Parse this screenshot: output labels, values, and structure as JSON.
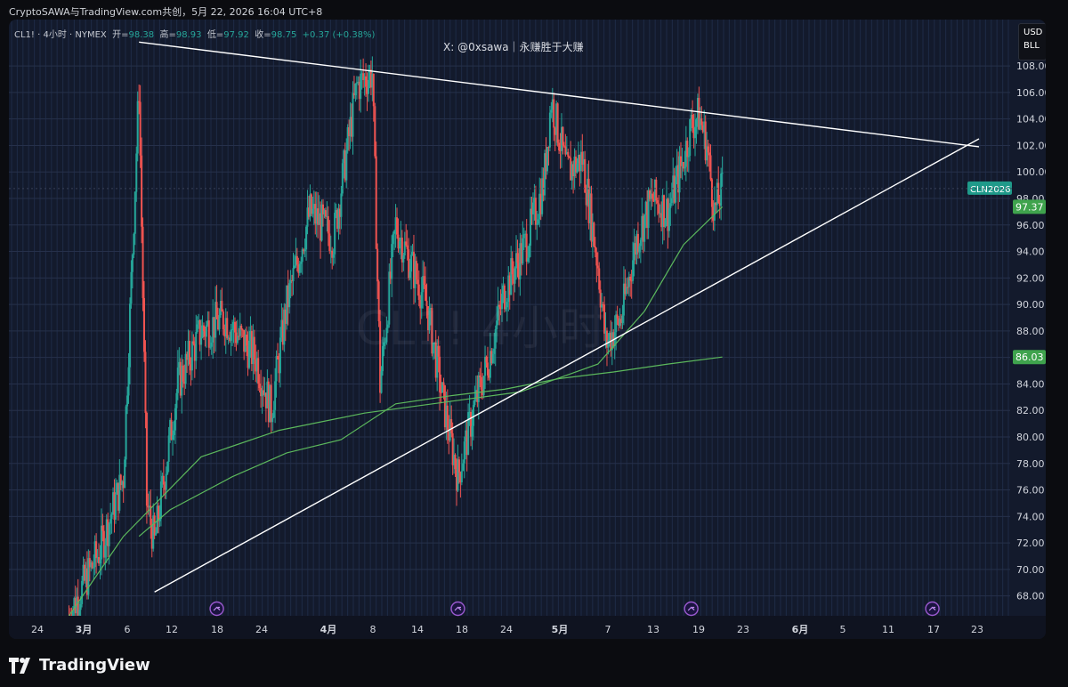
{
  "header": {
    "source": "CryptoSAWA与TradingView.com共创，5月 22, 2026 16:04 UTC+8",
    "symbol": "CL1! · 4小时 · NYMEX",
    "open_label": "开=",
    "open": "98.38",
    "high_label": "高=",
    "high": "98.93",
    "low_label": "低=",
    "low": "97.92",
    "close_label": "收=",
    "close": "98.75",
    "change": "+0.37 (+0.38%)"
  },
  "author_tag": "X: @0xsawa｜永赚胜于大赚",
  "watermark": "CL1! 4小时",
  "unit_box": {
    "line1": "USD",
    "line2": "BLL"
  },
  "footer": {
    "brand": "TradingView"
  },
  "colors": {
    "up": "#26a69a",
    "down": "#ef5350",
    "ma": "#5cb85c",
    "trendline": "#ffffff",
    "contract_label": "#1f9a8a",
    "price_label": "#3fa34d"
  },
  "chart_data": {
    "type": "candlestick",
    "title": "",
    "timeframe": "4小时",
    "xlabel": "",
    "ylabel": "",
    "ylim": [
      66.5,
      111.5
    ],
    "y_ticks": [
      "108.00",
      "106.00",
      "104.00",
      "102.00",
      "100.00",
      "98.00",
      "96.00",
      "94.00",
      "92.00",
      "90.00",
      "88.00",
      "86.00",
      "84.00",
      "82.00",
      "80.00",
      "78.00",
      "76.00",
      "74.00",
      "72.00",
      "70.00",
      "68.00"
    ],
    "x_ticks": [
      "24",
      "3月",
      "6",
      "12",
      "18",
      "24",
      "4月",
      "8",
      "14",
      "18",
      "24",
      "5月",
      "7",
      "13",
      "19",
      "23",
      "6月",
      "5",
      "11",
      "17",
      "23"
    ],
    "price_range_estimate": {
      "start_date": "2026-02-27",
      "end_date": "2026-05-22",
      "start_price": 66.5,
      "last_close": 98.75
    },
    "key_points": [
      {
        "date": "2026-02-27",
        "price": 66.5
      },
      {
        "date": "2026-03-03",
        "price": 71.5
      },
      {
        "date": "2026-03-06",
        "price": 77
      },
      {
        "date": "2026-03-08",
        "price": 106.5
      },
      {
        "date": "2026-03-09",
        "price": 75
      },
      {
        "date": "2026-03-10",
        "price": 72
      },
      {
        "date": "2026-03-13",
        "price": 84
      },
      {
        "date": "2026-03-16",
        "price": 88
      },
      {
        "date": "2026-03-19",
        "price": 89
      },
      {
        "date": "2026-03-23",
        "price": 86
      },
      {
        "date": "2026-03-25",
        "price": 82
      },
      {
        "date": "2026-03-27",
        "price": 90
      },
      {
        "date": "2026-03-30",
        "price": 97
      },
      {
        "date": "2026-04-02",
        "price": 95
      },
      {
        "date": "2026-04-05",
        "price": 106.5
      },
      {
        "date": "2026-04-07",
        "price": 107.5
      },
      {
        "date": "2026-04-08",
        "price": 84
      },
      {
        "date": "2026-04-10",
        "price": 96
      },
      {
        "date": "2026-04-14",
        "price": 90
      },
      {
        "date": "2026-04-16",
        "price": 83
      },
      {
        "date": "2026-04-18",
        "price": 77
      },
      {
        "date": "2026-04-20",
        "price": 82
      },
      {
        "date": "2026-04-22",
        "price": 86
      },
      {
        "date": "2026-04-24",
        "price": 91
      },
      {
        "date": "2026-04-27",
        "price": 95
      },
      {
        "date": "2026-04-29",
        "price": 99
      },
      {
        "date": "2026-04-30",
        "price": 105.5
      },
      {
        "date": "2026-05-02",
        "price": 100
      },
      {
        "date": "2026-05-04",
        "price": 101
      },
      {
        "date": "2026-05-06",
        "price": 93
      },
      {
        "date": "2026-05-07",
        "price": 87
      },
      {
        "date": "2026-05-09",
        "price": 89
      },
      {
        "date": "2026-05-11",
        "price": 95
      },
      {
        "date": "2026-05-13",
        "price": 98
      },
      {
        "date": "2026-05-15",
        "price": 97
      },
      {
        "date": "2026-05-17",
        "price": 101
      },
      {
        "date": "2026-05-18",
        "price": 103.5
      },
      {
        "date": "2026-05-19",
        "price": 104.3
      },
      {
        "date": "2026-05-20",
        "price": 102
      },
      {
        "date": "2026-05-21",
        "price": 97
      },
      {
        "date": "2026-05-22",
        "price": 98.75
      }
    ],
    "moving_average": {
      "name": "",
      "last_value": 86.03,
      "points": [
        {
          "date": "2026-03-08",
          "price": 72.5
        },
        {
          "date": "2026-03-12",
          "price": 74.5
        },
        {
          "date": "2026-03-20",
          "price": 77
        },
        {
          "date": "2026-03-27",
          "price": 78.8
        },
        {
          "date": "2026-04-03",
          "price": 79.8
        },
        {
          "date": "2026-04-10",
          "price": 82.5
        },
        {
          "date": "2026-04-17",
          "price": 83.1
        },
        {
          "date": "2026-04-24",
          "price": 83.6
        },
        {
          "date": "2026-05-01",
          "price": 84.4
        },
        {
          "date": "2026-05-08",
          "price": 84.9
        },
        {
          "date": "2026-05-15",
          "price": 85.5
        },
        {
          "date": "2026-05-22",
          "price": 86.03
        }
      ]
    },
    "short_moving_average": {
      "name": "",
      "last_value": 97.37,
      "points": [
        {
          "date": "2026-02-27",
          "price": 66.5
        },
        {
          "date": "2026-03-06",
          "price": 72.5
        },
        {
          "date": "2026-03-16",
          "price": 78.5
        },
        {
          "date": "2026-03-26",
          "price": 80.5
        },
        {
          "date": "2026-04-06",
          "price": 81.8
        },
        {
          "date": "2026-04-16",
          "price": 82.6
        },
        {
          "date": "2026-04-26",
          "price": 83.4
        },
        {
          "date": "2026-05-06",
          "price": 85.5
        },
        {
          "date": "2026-05-12",
          "price": 89.5
        },
        {
          "date": "2026-05-17",
          "price": 94.5
        },
        {
          "date": "2026-05-22",
          "price": 97.37
        }
      ]
    },
    "trendlines": [
      {
        "name": "",
        "from": {
          "date": "2026-03-08",
          "price": 109.8
        },
        "to": {
          "date": "2026-06-24",
          "price": 101.9
        }
      },
      {
        "name": "",
        "from": {
          "date": "2026-03-10",
          "price": 68.3
        },
        "to": {
          "date": "2026-06-24",
          "price": 102.5
        }
      }
    ],
    "price_labels": [
      {
        "text": "CLN2026",
        "price": 98.75,
        "kind": "contract"
      },
      {
        "text": "97.37",
        "price": 97.37,
        "kind": "ma"
      },
      {
        "text": "86.03",
        "price": 86.03,
        "kind": "ma"
      }
    ],
    "event_markers": [
      "2026-03-18",
      "2026-04-18",
      "2026-05-18",
      "2026-06-18"
    ],
    "grid": true,
    "legend": "none"
  }
}
